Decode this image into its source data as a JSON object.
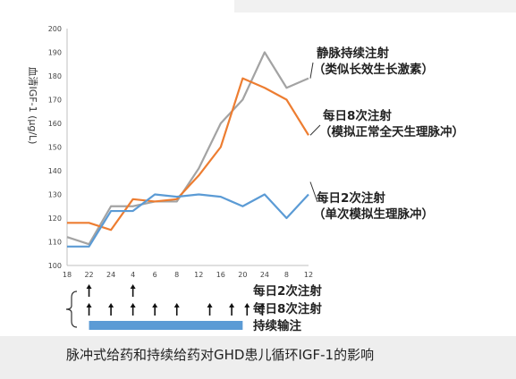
{
  "chart_data": {
    "type": "line",
    "ylabel": "血清IGF-1 (μg/L)",
    "ylim": [
      100,
      200
    ],
    "yticks": [
      100,
      110,
      120,
      130,
      140,
      150,
      160,
      170,
      180,
      190,
      200
    ],
    "categories": [
      "18",
      "22",
      "24",
      "4",
      "6",
      "8",
      "12",
      "16",
      "20",
      "24",
      "8",
      "12"
    ],
    "grid": false,
    "series": [
      {
        "color": "#a3a3a3",
        "label_lines": [
          "静脉持续注射",
          "（类似长效生长激素）"
        ],
        "values": [
          112,
          109,
          125,
          125,
          127,
          127,
          141,
          160,
          170,
          190,
          175,
          179
        ]
      },
      {
        "color": "#ed7d31",
        "label_lines": [
          "每日8次注射",
          "（模拟正常全天生理脉冲）"
        ],
        "values": [
          118,
          118,
          115,
          128,
          127,
          128,
          138,
          150,
          179,
          175,
          170,
          155
        ]
      },
      {
        "color": "#5b9bd5",
        "label_lines": [
          "每日2次注射",
          "（单次模拟生理脉冲）"
        ],
        "values": [
          108,
          108,
          123,
          123,
          130,
          129,
          130,
          129,
          125,
          130,
          120,
          130
        ]
      }
    ]
  },
  "dosing": {
    "twice_daily_label": "每日2次注射",
    "twice_daily_positions": [
      1,
      3
    ],
    "eight_daily_label": "每日8次注射",
    "eight_daily_positions": [
      1,
      2,
      3,
      4,
      5,
      6.5,
      7.5,
      8.2,
      8.9
    ],
    "continuous_label": "持续输注",
    "arrow_color": "#111111",
    "bar_color": "#5b9bd5"
  },
  "caption": "脉冲式给药和持续给药对GHD患儿循环IGF-1的影响"
}
